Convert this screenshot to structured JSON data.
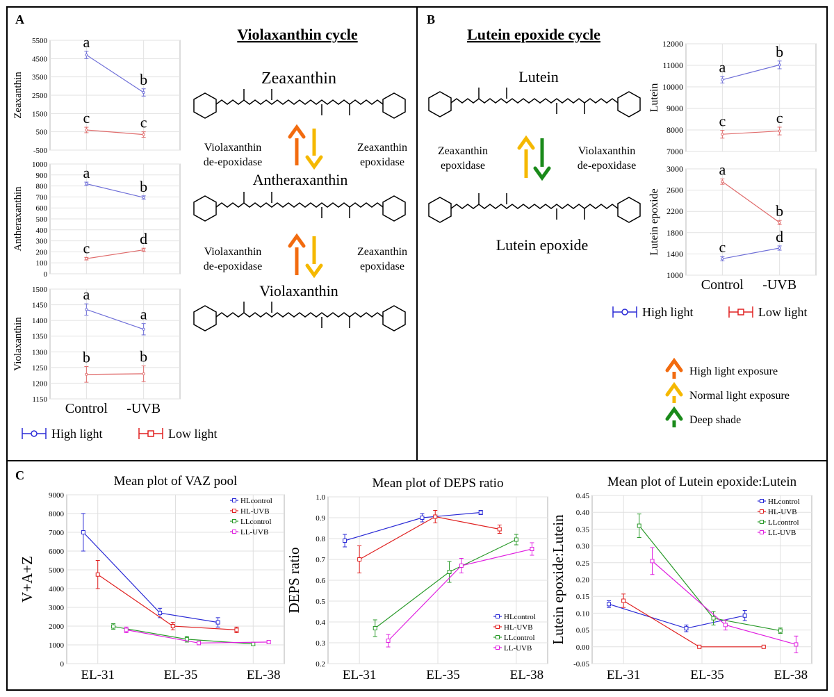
{
  "panel_letters": {
    "a": "A",
    "b": "B",
    "c": "C"
  },
  "panelA": {
    "title": "Violaxanthin cycle",
    "x_categories": [
      "Control",
      "-UVB"
    ],
    "legend": {
      "hl": "High light",
      "ll": "Low light"
    },
    "molecules": {
      "m1": "Zeaxanthin",
      "m2": "Antheraxanthin",
      "m3": "Violaxanthin"
    },
    "enzymes": {
      "left1": [
        "Violaxanthin",
        "de-epoxidase"
      ],
      "right1": [
        "Zeaxanthin",
        "epoxidase"
      ],
      "left2": [
        "Violaxanthin",
        "de-epoxidase"
      ],
      "right2": [
        "Zeaxanthin",
        "epoxidase"
      ]
    }
  },
  "panelB": {
    "title": "Lutein epoxide cycle",
    "x_categories": [
      "Control",
      "-UVB"
    ],
    "legend": {
      "hl": "High light",
      "ll": "Low light"
    },
    "molecules": {
      "m1": "Lutein",
      "m2": "Lutein epoxide"
    },
    "enzymes": {
      "left": [
        "Zeaxanthin",
        "epoxidase"
      ],
      "right": [
        "Violaxanthin",
        "de-epoxidase"
      ]
    },
    "arrow_legend": [
      {
        "label": "High light exposure",
        "color": "#f26b0f"
      },
      {
        "label": "Normal light exposure",
        "color": "#f5b800"
      },
      {
        "label": "Deep shade",
        "color": "#1a8a1a"
      }
    ]
  },
  "colors": {
    "hl": "#6f6fd8",
    "ll": "#e06c6c",
    "blue": "#2b2bd6",
    "red": "#e02020",
    "green": "#2a9a2a",
    "magenta": "#e020e0",
    "orange": "#f26b0f",
    "yellow": "#f5b800",
    "dgreen": "#1a8a1a"
  },
  "chart_data": [
    {
      "type": "line",
      "title": "",
      "ylabel": "Zeaxanthin",
      "categories": [
        "Control",
        "-UVB"
      ],
      "ylim": [
        -500,
        5500
      ],
      "yticks": [
        -500,
        500,
        1500,
        2500,
        3500,
        4500,
        5500
      ],
      "series": [
        {
          "name": "High light",
          "values": [
            4700,
            2650
          ],
          "errors": [
            200,
            200
          ],
          "letters": [
            "a",
            "b"
          ]
        },
        {
          "name": "Low light",
          "values": [
            600,
            350
          ],
          "errors": [
            150,
            150
          ],
          "letters": [
            "c",
            "c"
          ]
        }
      ]
    },
    {
      "type": "line",
      "title": "",
      "ylabel": "Antheraxanthin",
      "categories": [
        "Control",
        "-UVB"
      ],
      "ylim": [
        0,
        1000
      ],
      "yticks": [
        0,
        100,
        200,
        300,
        400,
        500,
        600,
        700,
        800,
        900,
        1000
      ],
      "series": [
        {
          "name": "High light",
          "values": [
            820,
            695
          ],
          "errors": [
            15,
            15
          ],
          "letters": [
            "a",
            "b"
          ]
        },
        {
          "name": "Low light",
          "values": [
            138,
            218
          ],
          "errors": [
            12,
            15
          ],
          "letters": [
            "c",
            "d"
          ]
        }
      ]
    },
    {
      "type": "line",
      "title": "",
      "ylabel": "Violaxanthin",
      "categories": [
        "Control",
        "-UVB"
      ],
      "ylim": [
        1150,
        1500
      ],
      "yticks": [
        1150,
        1200,
        1250,
        1300,
        1350,
        1400,
        1450,
        1500
      ],
      "series": [
        {
          "name": "High light",
          "values": [
            1435,
            1372
          ],
          "errors": [
            18,
            18
          ],
          "letters": [
            "a",
            "a"
          ]
        },
        {
          "name": "Low light",
          "values": [
            1228,
            1230
          ],
          "errors": [
            25,
            25
          ],
          "letters": [
            "b",
            "b"
          ]
        }
      ]
    },
    {
      "type": "line",
      "title": "",
      "ylabel": "Lutein",
      "categories": [
        "Control",
        "-UVB"
      ],
      "ylim": [
        7000,
        12000
      ],
      "yticks": [
        7000,
        8000,
        9000,
        10000,
        11000,
        12000
      ],
      "series": [
        {
          "name": "High light",
          "values": [
            10330,
            11020
          ],
          "errors": [
            150,
            180
          ],
          "letters": [
            "a",
            "b"
          ]
        },
        {
          "name": "Low light",
          "values": [
            7800,
            7950
          ],
          "errors": [
            180,
            180
          ],
          "letters": [
            "c",
            "c"
          ]
        }
      ]
    },
    {
      "type": "line",
      "title": "",
      "ylabel": "Lutein epoxide",
      "categories": [
        "Control",
        "-UVB"
      ],
      "ylim": [
        1000,
        3000
      ],
      "yticks": [
        1000,
        1400,
        1800,
        2200,
        2600,
        3000
      ],
      "series": [
        {
          "name": "High light",
          "values": [
            1310,
            1510
          ],
          "errors": [
            40,
            40
          ],
          "letters": [
            "c",
            "d"
          ]
        },
        {
          "name": "Low light",
          "values": [
            2760,
            1990
          ],
          "errors": [
            50,
            40
          ],
          "letters": [
            "a",
            "b"
          ]
        }
      ]
    },
    {
      "type": "line",
      "title": "Mean plot of VAZ pool",
      "ylabel": "V+A+Z",
      "categories": [
        "EL-31",
        "EL-35",
        "EL-38"
      ],
      "ylim": [
        0,
        9000
      ],
      "yticks": [
        0,
        1000,
        2000,
        3000,
        4000,
        5000,
        6000,
        7000,
        8000,
        9000
      ],
      "legend": "top-right",
      "series": [
        {
          "name": "HLcontrol",
          "x": [
            0.72,
            2.2,
            3.32
          ],
          "values": [
            7000,
            2700,
            2200
          ],
          "errors": [
            1000,
            250,
            250
          ]
        },
        {
          "name": "HL-UVB",
          "x": [
            1.0,
            2.45,
            3.68
          ],
          "values": [
            4750,
            2000,
            1800
          ],
          "errors": [
            750,
            200,
            150
          ]
        },
        {
          "name": "LLcontrol",
          "x": [
            1.3,
            2.72,
            4.0
          ],
          "values": [
            1980,
            1300,
            1050
          ],
          "errors": [
            150,
            150,
            80
          ]
        },
        {
          "name": "LL-UVB",
          "x": [
            1.55,
            2.95,
            4.3
          ],
          "values": [
            1800,
            1100,
            1150
          ],
          "errors": [
            150,
            100,
            80
          ]
        }
      ]
    },
    {
      "type": "line",
      "title": "Mean plot of DEPS ratio",
      "ylabel": "DEPS ratio",
      "categories": [
        "EL-31",
        "EL-35",
        "EL-38"
      ],
      "ylim": [
        0.2,
        1.0
      ],
      "yticks": [
        0.2,
        0.3,
        0.4,
        0.5,
        0.6,
        0.7,
        0.8,
        0.9,
        1.0
      ],
      "legend": "bottom-right",
      "series": [
        {
          "name": "HLcontrol",
          "x": [
            0.72,
            2.2,
            3.32
          ],
          "values": [
            0.79,
            0.9,
            0.925
          ],
          "errors": [
            0.03,
            0.02,
            0.01
          ]
        },
        {
          "name": "HL-UVB",
          "x": [
            1.0,
            2.45,
            3.68
          ],
          "values": [
            0.7,
            0.905,
            0.845
          ],
          "errors": [
            0.065,
            0.03,
            0.02
          ]
        },
        {
          "name": "LLcontrol",
          "x": [
            1.3,
            2.72,
            4.0
          ],
          "values": [
            0.37,
            0.64,
            0.795
          ],
          "errors": [
            0.04,
            0.05,
            0.025
          ]
        },
        {
          "name": "LL-UVB",
          "x": [
            1.55,
            2.95,
            4.3
          ],
          "values": [
            0.31,
            0.67,
            0.75
          ],
          "errors": [
            0.03,
            0.035,
            0.03
          ]
        }
      ]
    },
    {
      "type": "line",
      "title": "Mean plot of Lutein epoxide:Lutein",
      "ylabel": "Lutein epoxide:Lutein",
      "categories": [
        "EL-31",
        "EL-35",
        "EL-38"
      ],
      "ylim": [
        -0.05,
        0.45
      ],
      "yticks": [
        -0.05,
        0.0,
        0.05,
        0.1,
        0.15,
        0.2,
        0.25,
        0.3,
        0.35,
        0.4,
        0.45
      ],
      "legend": "top-right",
      "series": [
        {
          "name": "HLcontrol",
          "x": [
            0.72,
            2.2,
            3.32
          ],
          "values": [
            0.127,
            0.055,
            0.093
          ],
          "errors": [
            0.01,
            0.01,
            0.015
          ]
        },
        {
          "name": "HL-UVB",
          "x": [
            1.0,
            2.45,
            3.68
          ],
          "values": [
            0.137,
            0.0,
            0.0
          ],
          "errors": [
            0.02,
            0.0,
            0.0
          ]
        },
        {
          "name": "LLcontrol",
          "x": [
            1.3,
            2.72,
            4.0
          ],
          "values": [
            0.36,
            0.085,
            0.048
          ],
          "errors": [
            0.035,
            0.02,
            0.008
          ]
        },
        {
          "name": "LL-UVB",
          "x": [
            1.55,
            2.95,
            4.3
          ],
          "values": [
            0.255,
            0.065,
            0.007
          ],
          "errors": [
            0.04,
            0.015,
            0.025
          ]
        }
      ]
    }
  ]
}
